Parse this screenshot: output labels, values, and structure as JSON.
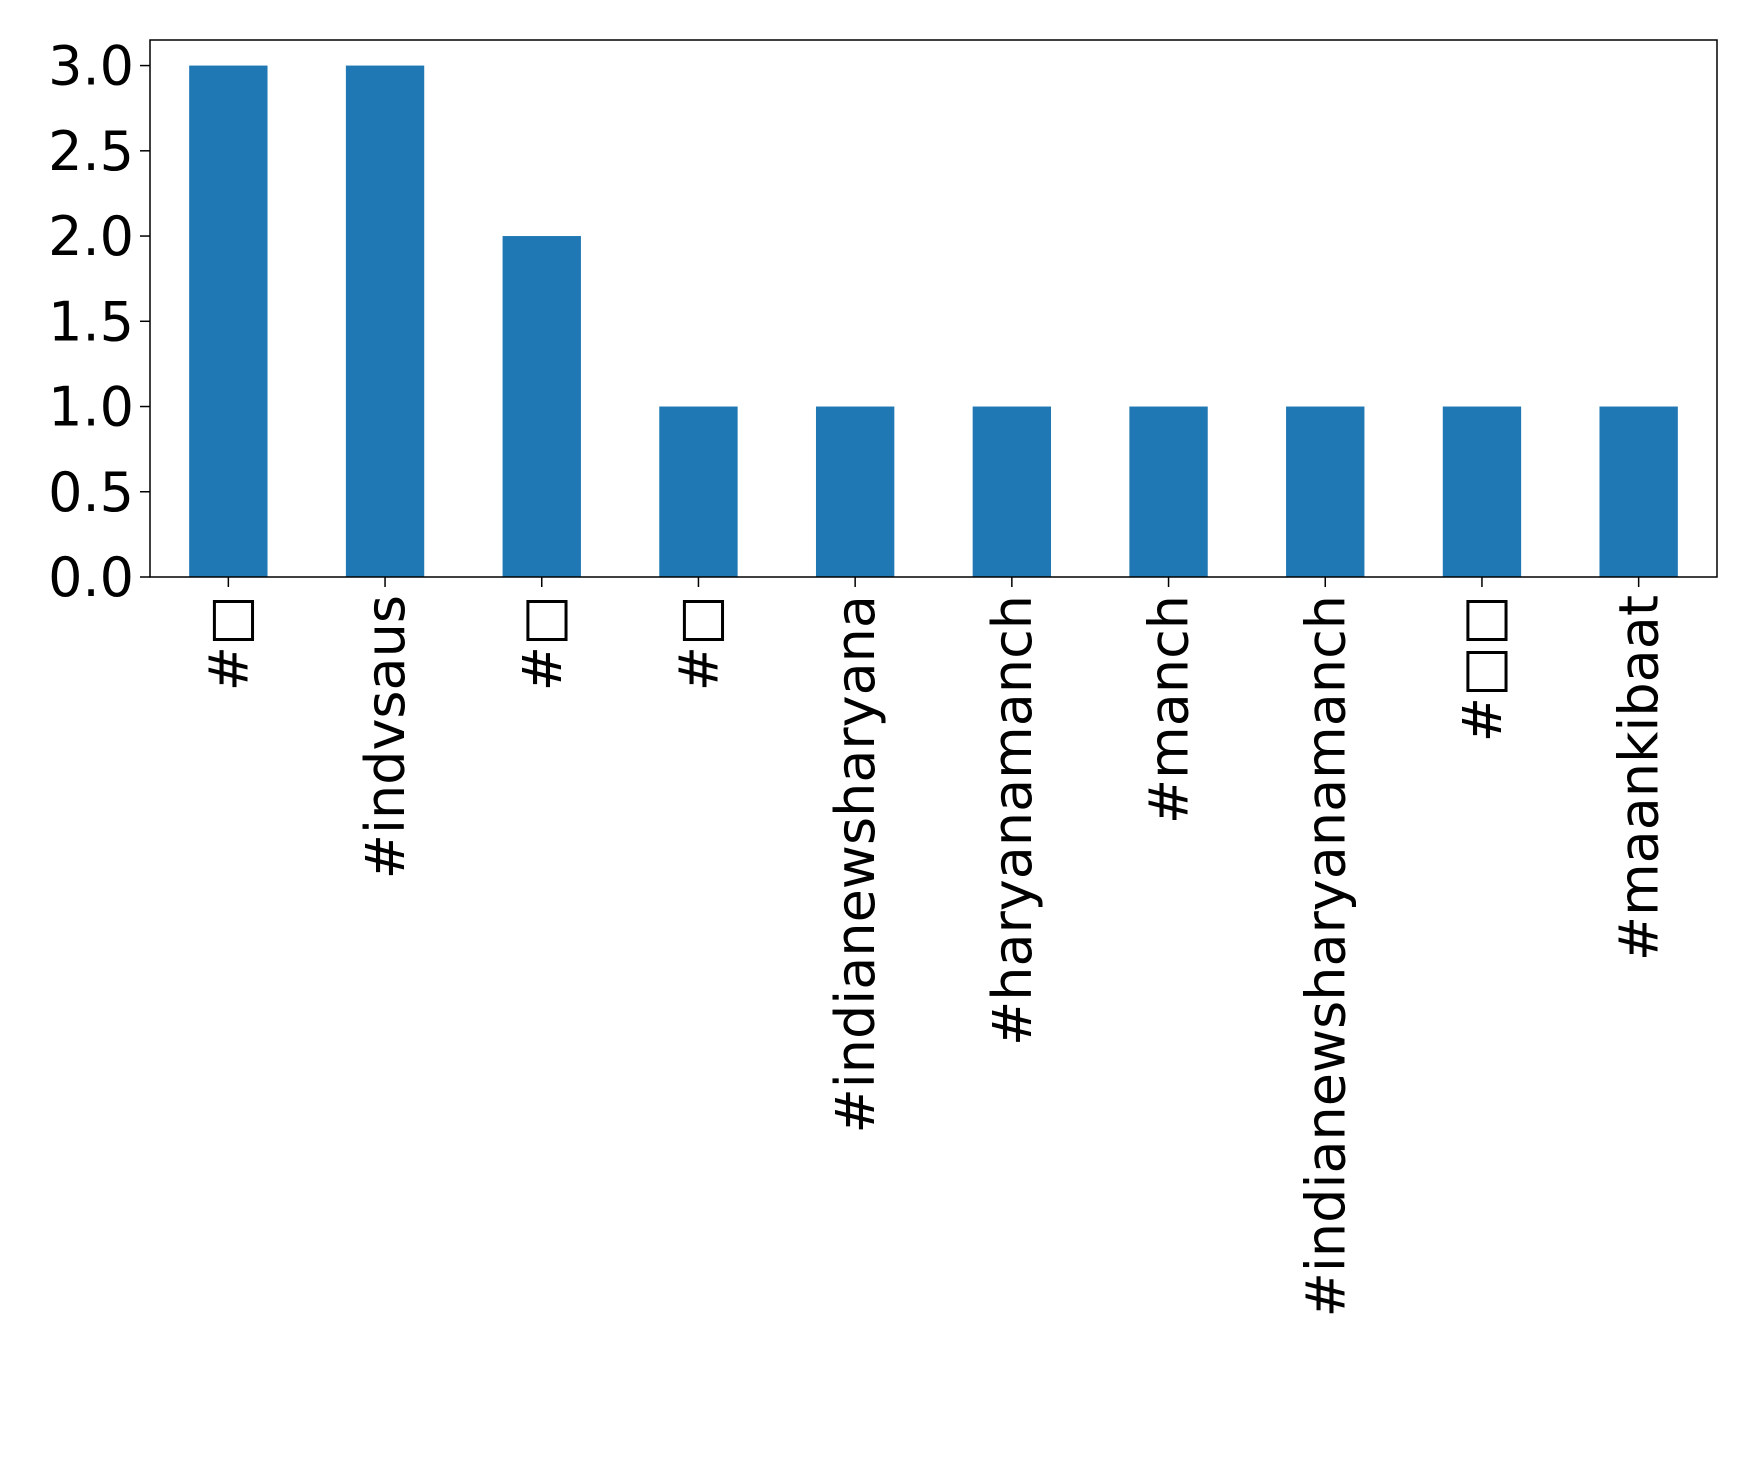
{
  "chart_data": {
    "type": "bar",
    "categories": [
      "#□",
      "#indvsaus",
      "#□",
      "#□",
      "#indianewsharyana",
      "#haryanamanch",
      "#manch",
      "#indianewsharyanamanch",
      "#□□",
      "#maankibaat"
    ],
    "values": [
      3,
      3,
      2,
      1,
      1,
      1,
      1,
      1,
      1,
      1
    ],
    "color": "#1f77b4",
    "ylim": [
      0,
      3.15
    ],
    "yticks": [
      {
        "value": 0,
        "label": "0.0"
      },
      0.5,
      {
        "value": 1,
        "label": "1.0"
      },
      1.5,
      {
        "value": 2,
        "label": "2.0"
      },
      2.5,
      {
        "value": 3,
        "label": "3.0"
      }
    ],
    "grid": false
  }
}
